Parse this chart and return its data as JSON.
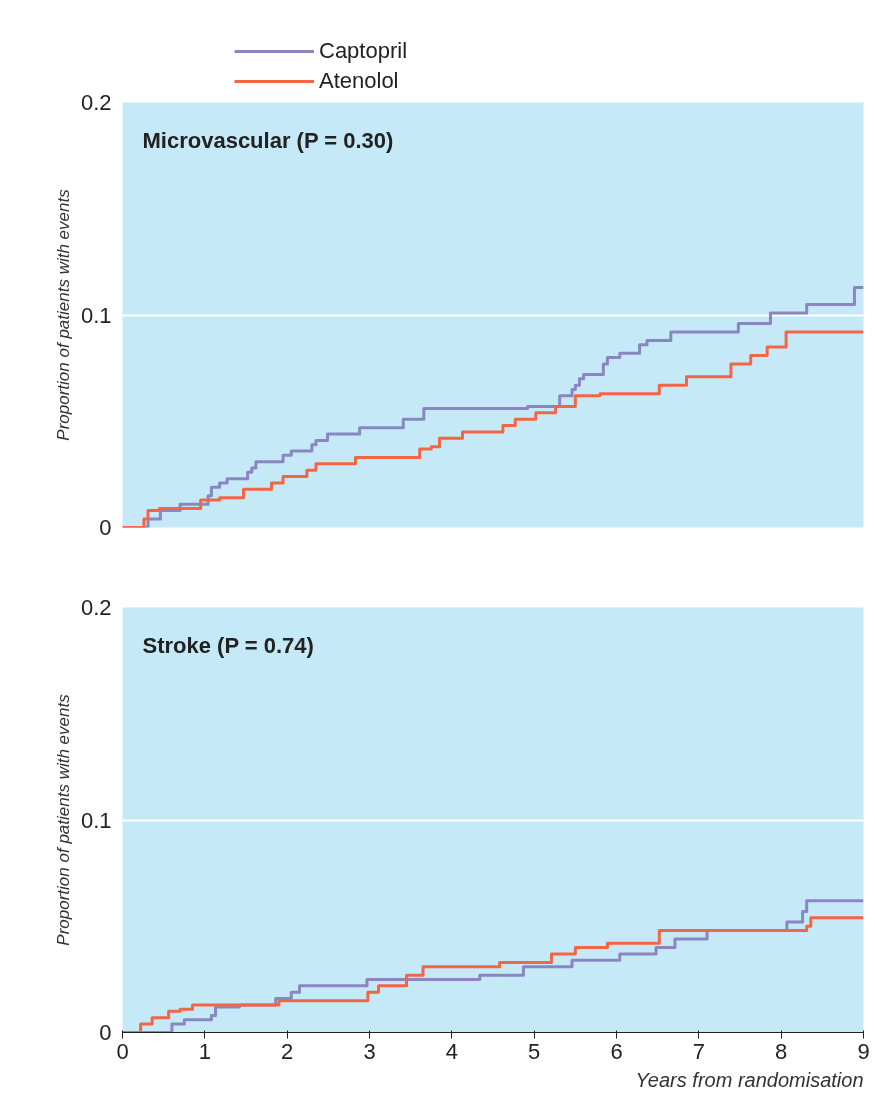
{
  "chart_data": [
    {
      "type": "step",
      "title": "Microvascular (P = 0.30)",
      "ylabel": "Proportion of patients with events",
      "xlim": [
        0,
        9
      ],
      "ylim": [
        0,
        0.2
      ],
      "xticks": [
        0,
        1,
        2,
        3,
        4,
        5,
        6,
        7,
        8,
        9
      ],
      "yticks": [
        0,
        0.1,
        0.2
      ],
      "grid": "y",
      "legend": "top left",
      "tick_labels": "y",
      "line_style": "solid",
      "marker": "none",
      "series": [
        {
          "name": "Captopril",
          "color": "#8a86c2",
          "x": [
            0,
            0.31,
            0.46,
            0.7,
            1.04,
            1.08,
            1.18,
            1.27,
            1.52,
            1.57,
            1.62,
            1.95,
            2.05,
            2.3,
            2.35,
            2.49,
            2.88,
            3.41,
            3.66,
            4.92,
            5.31,
            5.46,
            5.5,
            5.55,
            5.6,
            5.84,
            5.89,
            6.04,
            6.28,
            6.37,
            6.66,
            7.48,
            7.87,
            8.31,
            8.89,
            9
          ],
          "values": [
            0,
            0.004,
            0.008,
            0.011,
            0.015,
            0.019,
            0.021,
            0.023,
            0.026,
            0.028,
            0.031,
            0.034,
            0.036,
            0.039,
            0.041,
            0.044,
            0.047,
            0.051,
            0.056,
            0.057,
            0.062,
            0.065,
            0.067,
            0.07,
            0.072,
            0.077,
            0.08,
            0.082,
            0.086,
            0.088,
            0.092,
            0.096,
            0.101,
            0.105,
            0.113,
            0.113
          ]
        },
        {
          "name": "Atenolol",
          "color": "#f26645",
          "x": [
            0,
            0.26,
            0.31,
            0.45,
            0.95,
            1.18,
            1.47,
            1.81,
            1.95,
            2.24,
            2.35,
            2.83,
            3.61,
            3.75,
            3.85,
            4.13,
            4.62,
            4.77,
            5.02,
            5.26,
            5.5,
            5.8,
            6.52,
            6.85,
            7.39,
            7.63,
            7.83,
            8.06,
            9
          ],
          "values": [
            0,
            0.004,
            0.008,
            0.009,
            0.013,
            0.014,
            0.018,
            0.021,
            0.024,
            0.027,
            0.03,
            0.033,
            0.037,
            0.038,
            0.042,
            0.045,
            0.048,
            0.051,
            0.054,
            0.057,
            0.062,
            0.063,
            0.067,
            0.071,
            0.077,
            0.081,
            0.085,
            0.092,
            0.092
          ]
        }
      ]
    },
    {
      "type": "step",
      "title": "Stroke (P = 0.74)",
      "ylabel": "Proportion of patients with events",
      "xlabel": "Years from randomisation",
      "xlim": [
        0,
        9
      ],
      "ylim": [
        0,
        0.2
      ],
      "xticks": [
        0,
        1,
        2,
        3,
        4,
        5,
        6,
        7,
        8,
        9
      ],
      "yticks": [
        0,
        0.1,
        0.2
      ],
      "grid": "y",
      "line_style": "solid",
      "marker": "none",
      "series": [
        {
          "color": "#8a86c2",
          "x": [
            0,
            0.6,
            0.75,
            1.08,
            1.13,
            1.42,
            1.86,
            2.05,
            2.15,
            2.97,
            4.34,
            4.87,
            5.46,
            6.04,
            6.48,
            6.71,
            7.1,
            8.07,
            8.26,
            8.31,
            9
          ],
          "values": [
            0,
            0.004,
            0.006,
            0.008,
            0.012,
            0.013,
            0.016,
            0.019,
            0.022,
            0.025,
            0.027,
            0.031,
            0.034,
            0.037,
            0.04,
            0.044,
            0.048,
            0.052,
            0.057,
            0.062,
            0.062
          ]
        },
        {
          "color": "#f26645",
          "x": [
            0,
            0.22,
            0.36,
            0.56,
            0.7,
            0.85,
            1.9,
            2.98,
            3.11,
            3.45,
            3.65,
            4.58,
            5.21,
            5.5,
            5.89,
            6.52,
            8.31,
            8.36,
            9
          ],
          "values": [
            0,
            0.004,
            0.007,
            0.01,
            0.011,
            0.013,
            0.015,
            0.019,
            0.022,
            0.027,
            0.031,
            0.033,
            0.037,
            0.04,
            0.042,
            0.048,
            0.05,
            0.054,
            0.054
          ]
        }
      ]
    }
  ]
}
